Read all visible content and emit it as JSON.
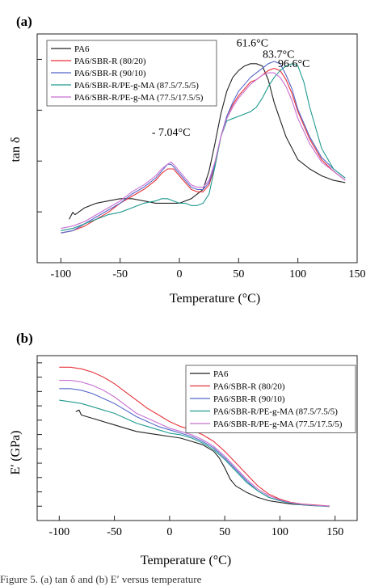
{
  "caption": "Figure 5. (a) tan δ and (b) E′ versus temperature",
  "colors": {
    "PA6": "#222222",
    "PA6/SBR-R (80/20)": "#e8323a",
    "PA6/SBR-R (90/10)": "#5568c9",
    "PA6/SBR-R/PE-g-MA (87.5/7.5/5)": "#1f9a8f",
    "PA6/SBR-R/PE-g-MA (77.5/17.5/5)": "#c76fd0"
  },
  "chart_data": [
    {
      "id": "a",
      "type": "line",
      "panel_label": "(a)",
      "title": "",
      "xlabel": "Temperature (°C)",
      "ylabel": "tan δ",
      "xlim": [
        -120,
        150
      ],
      "ylim": [
        0,
        1
      ],
      "xticks": [
        -100,
        -50,
        0,
        50,
        100,
        150
      ],
      "y_tick_labels": false,
      "legend": "top-left",
      "annotations": [
        {
          "text": "61.6°C",
          "x": 61.6,
          "y": 0.945
        },
        {
          "text": "83.7°C",
          "x": 83.7,
          "y": 0.895
        },
        {
          "text": "96.6°C",
          "x": 96.6,
          "y": 0.855
        },
        {
          "text": "- 7.04°C",
          "x": -7.04,
          "y": 0.555
        }
      ],
      "series": [
        {
          "name": "PA6",
          "x": [
            -93,
            -90,
            -88,
            -80,
            -70,
            -60,
            -50,
            -40,
            -30,
            -20,
            -10,
            0,
            5,
            10,
            20,
            25,
            30,
            35,
            40,
            45,
            50,
            55,
            60,
            65,
            70,
            75,
            80,
            90,
            100,
            110,
            120,
            130,
            140
          ],
          "y": [
            0.19,
            0.22,
            0.21,
            0.24,
            0.26,
            0.27,
            0.28,
            0.28,
            0.27,
            0.26,
            0.26,
            0.26,
            0.27,
            0.28,
            0.32,
            0.4,
            0.52,
            0.65,
            0.75,
            0.81,
            0.84,
            0.86,
            0.87,
            0.87,
            0.86,
            0.8,
            0.7,
            0.55,
            0.45,
            0.41,
            0.38,
            0.36,
            0.35
          ]
        },
        {
          "name": "PA6/SBR-R (80/20)",
          "x": [
            -100,
            -90,
            -80,
            -70,
            -60,
            -50,
            -40,
            -30,
            -20,
            -15,
            -10,
            -7,
            -5,
            0,
            5,
            10,
            15,
            20,
            25,
            30,
            35,
            40,
            45,
            50,
            55,
            60,
            65,
            70,
            75,
            80,
            85,
            90,
            95,
            100,
            110,
            120,
            130,
            140
          ],
          "y": [
            0.13,
            0.14,
            0.16,
            0.19,
            0.22,
            0.26,
            0.29,
            0.32,
            0.36,
            0.39,
            0.41,
            0.41,
            0.41,
            0.38,
            0.35,
            0.32,
            0.31,
            0.31,
            0.34,
            0.42,
            0.55,
            0.64,
            0.69,
            0.73,
            0.76,
            0.79,
            0.8,
            0.82,
            0.84,
            0.85,
            0.84,
            0.8,
            0.74,
            0.66,
            0.54,
            0.45,
            0.4,
            0.36
          ]
        },
        {
          "name": "PA6/SBR-R (90/10)",
          "x": [
            -100,
            -90,
            -80,
            -70,
            -60,
            -50,
            -40,
            -30,
            -20,
            -15,
            -10,
            -7,
            -5,
            0,
            5,
            10,
            15,
            20,
            25,
            30,
            35,
            40,
            45,
            50,
            55,
            60,
            65,
            70,
            75,
            80,
            85,
            90,
            95,
            100,
            110,
            120,
            130,
            140
          ],
          "y": [
            0.13,
            0.14,
            0.17,
            0.2,
            0.23,
            0.26,
            0.3,
            0.33,
            0.37,
            0.4,
            0.43,
            0.43,
            0.42,
            0.39,
            0.36,
            0.33,
            0.32,
            0.32,
            0.35,
            0.43,
            0.55,
            0.64,
            0.7,
            0.75,
            0.78,
            0.81,
            0.83,
            0.85,
            0.87,
            0.88,
            0.87,
            0.82,
            0.76,
            0.67,
            0.55,
            0.46,
            0.41,
            0.37
          ]
        },
        {
          "name": "PA6/SBR-R/PE-g-MA (87.5/7.5/5)",
          "x": [
            -100,
            -90,
            -80,
            -70,
            -60,
            -50,
            -40,
            -30,
            -20,
            -15,
            -10,
            -5,
            0,
            5,
            10,
            15,
            20,
            25,
            30,
            35,
            40,
            45,
            50,
            55,
            60,
            65,
            70,
            75,
            80,
            85,
            90,
            95,
            100,
            105,
            110,
            120,
            130,
            140
          ],
          "y": [
            0.14,
            0.15,
            0.17,
            0.19,
            0.21,
            0.22,
            0.24,
            0.26,
            0.27,
            0.28,
            0.28,
            0.27,
            0.26,
            0.26,
            0.25,
            0.25,
            0.26,
            0.3,
            0.42,
            0.55,
            0.62,
            0.63,
            0.64,
            0.65,
            0.66,
            0.68,
            0.72,
            0.77,
            0.81,
            0.84,
            0.86,
            0.87,
            0.86,
            0.79,
            0.68,
            0.5,
            0.41,
            0.37
          ]
        },
        {
          "name": "PA6/SBR-R/PE-g-MA (77.5/17.5/5)",
          "x": [
            -100,
            -90,
            -80,
            -70,
            -60,
            -50,
            -40,
            -30,
            -20,
            -15,
            -10,
            -7,
            -5,
            0,
            5,
            10,
            15,
            20,
            25,
            30,
            35,
            40,
            45,
            50,
            55,
            60,
            65,
            70,
            75,
            80,
            85,
            90,
            95,
            100,
            110,
            120,
            130,
            140
          ],
          "y": [
            0.15,
            0.16,
            0.18,
            0.21,
            0.24,
            0.27,
            0.31,
            0.34,
            0.38,
            0.41,
            0.43,
            0.44,
            0.43,
            0.4,
            0.37,
            0.34,
            0.33,
            0.33,
            0.36,
            0.44,
            0.55,
            0.63,
            0.68,
            0.72,
            0.75,
            0.78,
            0.8,
            0.82,
            0.83,
            0.83,
            0.81,
            0.77,
            0.71,
            0.63,
            0.52,
            0.44,
            0.4,
            0.36
          ]
        }
      ]
    },
    {
      "id": "b",
      "type": "line",
      "panel_label": "(b)",
      "title": "",
      "xlabel": "Temperature (°C)",
      "ylabel": "E' (GPa)",
      "xlim": [
        -120,
        170
      ],
      "ylim": [
        0,
        1
      ],
      "xticks": [
        -100,
        -50,
        0,
        50,
        100,
        150
      ],
      "y_tick_labels": false,
      "legend": "top-right",
      "series": [
        {
          "name": "PA6",
          "x": [
            -85,
            -82,
            -80,
            -75,
            -70,
            -60,
            -50,
            -40,
            -30,
            -20,
            -10,
            0,
            10,
            20,
            30,
            40,
            45,
            50,
            55,
            60,
            70,
            80,
            90,
            100,
            110,
            120,
            130,
            140,
            145
          ],
          "y": [
            0.66,
            0.67,
            0.64,
            0.63,
            0.62,
            0.6,
            0.58,
            0.56,
            0.54,
            0.53,
            0.52,
            0.51,
            0.5,
            0.48,
            0.46,
            0.42,
            0.38,
            0.32,
            0.25,
            0.21,
            0.17,
            0.14,
            0.12,
            0.11,
            0.1,
            0.095,
            0.09,
            0.088,
            0.087
          ]
        },
        {
          "name": "PA6/SBR-R (80/20)",
          "x": [
            -100,
            -90,
            -80,
            -70,
            -60,
            -50,
            -40,
            -30,
            -20,
            -10,
            0,
            10,
            20,
            30,
            40,
            50,
            60,
            70,
            80,
            90,
            100,
            110,
            120,
            130,
            140,
            145
          ],
          "y": [
            0.93,
            0.93,
            0.92,
            0.9,
            0.87,
            0.83,
            0.78,
            0.73,
            0.68,
            0.64,
            0.6,
            0.57,
            0.55,
            0.52,
            0.48,
            0.42,
            0.35,
            0.28,
            0.21,
            0.16,
            0.13,
            0.11,
            0.1,
            0.095,
            0.09,
            0.088
          ]
        },
        {
          "name": "PA6/SBR-R (90/10)",
          "x": [
            -100,
            -90,
            -80,
            -70,
            -60,
            -50,
            -40,
            -30,
            -20,
            -10,
            0,
            10,
            20,
            30,
            40,
            50,
            60,
            70,
            80,
            90,
            100,
            110,
            120,
            130,
            140,
            145
          ],
          "y": [
            0.8,
            0.8,
            0.79,
            0.77,
            0.74,
            0.71,
            0.67,
            0.63,
            0.6,
            0.57,
            0.55,
            0.53,
            0.51,
            0.48,
            0.44,
            0.38,
            0.31,
            0.24,
            0.18,
            0.14,
            0.12,
            0.105,
            0.097,
            0.092,
            0.088,
            0.086
          ]
        },
        {
          "name": "PA6/SBR-R/PE-g-MA (87.5/7.5/5)",
          "x": [
            -100,
            -90,
            -80,
            -70,
            -60,
            -50,
            -40,
            -30,
            -20,
            -10,
            0,
            10,
            20,
            30,
            40,
            50,
            60,
            70,
            80,
            90,
            100,
            110,
            120,
            130,
            140,
            145
          ],
          "y": [
            0.73,
            0.72,
            0.71,
            0.69,
            0.67,
            0.65,
            0.62,
            0.59,
            0.57,
            0.55,
            0.53,
            0.52,
            0.5,
            0.47,
            0.43,
            0.37,
            0.3,
            0.23,
            0.18,
            0.14,
            0.12,
            0.105,
            0.096,
            0.091,
            0.087,
            0.085
          ]
        },
        {
          "name": "PA6/SBR-R/PE-g-MA (77.5/17.5/5)",
          "x": [
            -100,
            -90,
            -80,
            -70,
            -60,
            -50,
            -40,
            -30,
            -20,
            -10,
            0,
            10,
            20,
            30,
            40,
            50,
            60,
            70,
            80,
            90,
            100,
            110,
            120,
            130,
            140,
            145
          ],
          "y": [
            0.85,
            0.85,
            0.84,
            0.82,
            0.79,
            0.75,
            0.7,
            0.65,
            0.62,
            0.59,
            0.56,
            0.54,
            0.52,
            0.49,
            0.45,
            0.39,
            0.32,
            0.25,
            0.19,
            0.15,
            0.125,
            0.108,
            0.099,
            0.093,
            0.089,
            0.087
          ]
        }
      ]
    }
  ]
}
